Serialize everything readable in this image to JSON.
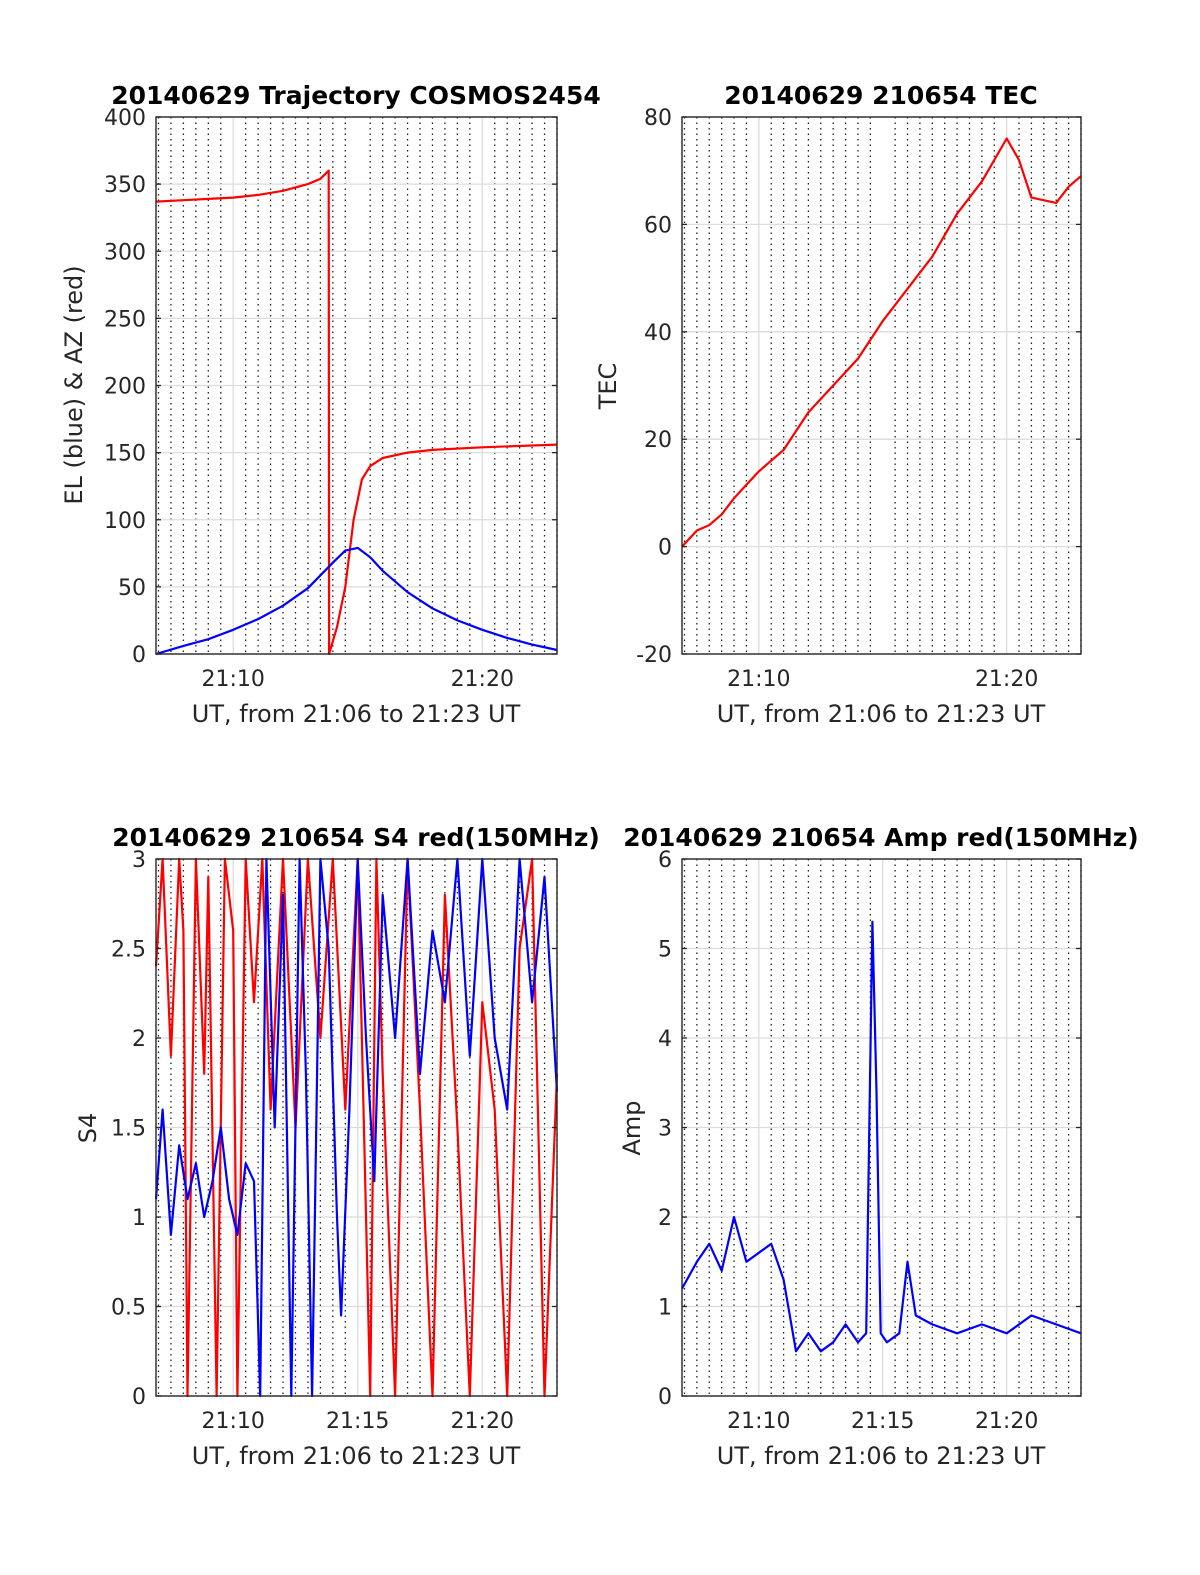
{
  "chart_data": [
    {
      "type": "line",
      "title": "20140629 Trajectory COSMOS2454",
      "xlabel": "UT, from 21:06 to 21:23 UT",
      "ylabel": "EL (blue) & AZ (red)",
      "xlim": [
        "21:06:54",
        "21:23:00"
      ],
      "ylim": [
        0,
        400
      ],
      "yticks": [
        0,
        50,
        100,
        150,
        200,
        250,
        300,
        350,
        400
      ],
      "xticks": [
        "21:10",
        "21:20"
      ],
      "grid": true,
      "series": [
        {
          "color": "#ff0000",
          "x": [
            "21:06:54",
            "21:08:00",
            "21:09:00",
            "21:10:00",
            "21:11:00",
            "21:12:00",
            "21:13:00",
            "21:13:30",
            "21:13:50",
            "21:13:51",
            "21:14:10",
            "21:14:30",
            "21:14:50",
            "21:15:10",
            "21:15:30",
            "21:16:00",
            "21:17:00",
            "21:18:00",
            "21:20:00",
            "21:23:00"
          ],
          "values": [
            337,
            338,
            339,
            340,
            342,
            345,
            350,
            354,
            360,
            0,
            20,
            50,
            100,
            130,
            140,
            146,
            150,
            152,
            154,
            156
          ]
        },
        {
          "color": "#0000ff",
          "x": [
            "21:06:54",
            "21:08:00",
            "21:09:00",
            "21:10:00",
            "21:11:00",
            "21:12:00",
            "21:13:00",
            "21:14:00",
            "21:14:30",
            "21:15:00",
            "21:15:30",
            "21:16:00",
            "21:17:00",
            "21:18:00",
            "21:19:00",
            "21:20:00",
            "21:21:00",
            "21:22:00",
            "21:23:00"
          ],
          "values": [
            0,
            6,
            11,
            18,
            26,
            36,
            49,
            68,
            77,
            79,
            72,
            62,
            46,
            34,
            25,
            18,
            12,
            7,
            3
          ]
        }
      ]
    },
    {
      "type": "line",
      "title": "20140629 210654 TEC",
      "xlabel": "UT, from 21:06 to 21:23 UT",
      "ylabel": "TEC",
      "xlim": [
        "21:06:54",
        "21:23:00"
      ],
      "ylim": [
        -20,
        80
      ],
      "yticks": [
        -20,
        0,
        20,
        40,
        60,
        80
      ],
      "xticks": [
        "21:10",
        "21:20"
      ],
      "grid": true,
      "series": [
        {
          "color": "#ff0000",
          "x": [
            "21:06:54",
            "21:07:30",
            "21:08:00",
            "21:08:30",
            "21:09:00",
            "21:10:00",
            "21:11:00",
            "21:12:00",
            "21:13:00",
            "21:14:00",
            "21:15:00",
            "21:16:00",
            "21:17:00",
            "21:18:00",
            "21:19:00",
            "21:20:00",
            "21:20:30",
            "21:21:00",
            "21:22:00",
            "21:22:30",
            "21:23:00"
          ],
          "values": [
            0,
            3,
            4,
            6,
            9,
            14,
            18,
            25,
            30,
            35,
            42,
            48,
            54,
            62,
            68,
            76,
            72,
            65,
            64,
            67,
            69
          ]
        }
      ]
    },
    {
      "type": "line",
      "title": "20140629 210654 S4 red(150MHz)",
      "xlabel": "UT, from 21:06 to 21:23 UT",
      "ylabel": "S4",
      "xlim": [
        "21:06:54",
        "21:23:00"
      ],
      "ylim": [
        0,
        3
      ],
      "yticks": [
        0,
        0.5,
        1,
        1.5,
        2,
        2.5,
        3
      ],
      "xticks": [
        "21:10",
        "21:15",
        "21:20"
      ],
      "grid": true,
      "series": [
        {
          "color": "#ff0000",
          "x": [
            "21:06:54",
            "21:07:10",
            "21:07:30",
            "21:07:50",
            "21:08:00",
            "21:08:10",
            "21:08:30",
            "21:08:50",
            "21:09:00",
            "21:09:20",
            "21:09:40",
            "21:10:00",
            "21:10:10",
            "21:10:30",
            "21:10:50",
            "21:11:10",
            "21:11:30",
            "21:12:00",
            "21:12:30",
            "21:13:00",
            "21:13:30",
            "21:14:00",
            "21:14:30",
            "21:15:00",
            "21:15:30",
            "21:15:45",
            "21:16:00",
            "21:16:30",
            "21:17:00",
            "21:17:30",
            "21:18:00",
            "21:18:30",
            "21:19:00",
            "21:19:30",
            "21:20:00",
            "21:20:30",
            "21:21:00",
            "21:21:30",
            "21:22:00",
            "21:22:30",
            "21:23:00"
          ],
          "values": [
            2.4,
            3,
            1.9,
            3,
            2.6,
            0,
            3,
            1.8,
            2.9,
            0,
            3,
            2.6,
            0,
            3,
            2.2,
            3,
            1.6,
            3,
            1.5,
            3,
            2.0,
            3,
            1.6,
            3,
            0,
            3,
            1.8,
            0,
            3,
            1.6,
            0,
            2.8,
            1.5,
            0,
            2.2,
            1.6,
            0,
            2.5,
            3,
            0,
            1.8
          ]
        },
        {
          "color": "#0000ff",
          "x": [
            "21:06:54",
            "21:07:10",
            "21:07:30",
            "21:07:50",
            "21:08:10",
            "21:08:30",
            "21:08:50",
            "21:09:10",
            "21:09:30",
            "21:09:50",
            "21:10:10",
            "21:10:30",
            "21:10:50",
            "21:11:05",
            "21:11:20",
            "21:11:40",
            "21:12:00",
            "21:12:20",
            "21:12:40",
            "21:12:55",
            "21:13:10",
            "21:13:30",
            "21:13:50",
            "21:14:10",
            "21:14:20",
            "21:14:40",
            "21:15:00",
            "21:15:20",
            "21:15:40",
            "21:16:00",
            "21:16:30",
            "21:17:00",
            "21:17:30",
            "21:18:00",
            "21:18:30",
            "21:19:00",
            "21:19:30",
            "21:20:00",
            "21:20:30",
            "21:21:00",
            "21:21:30",
            "21:22:00",
            "21:22:30",
            "21:23:00"
          ],
          "values": [
            1.1,
            1.6,
            0.9,
            1.4,
            1.1,
            1.3,
            1.0,
            1.2,
            1.5,
            1.1,
            0.9,
            1.3,
            1.2,
            0,
            3,
            1.5,
            2.8,
            0,
            3,
            1.8,
            0,
            3,
            2.5,
            1.0,
            0.45,
            1.6,
            3,
            2.0,
            1.2,
            2.8,
            2.0,
            3,
            1.8,
            2.6,
            2.2,
            3,
            1.9,
            3,
            2.0,
            1.6,
            3,
            2.2,
            2.9,
            1.7
          ]
        }
      ]
    },
    {
      "type": "line",
      "title": "20140629 210654 Amp red(150MHz)",
      "xlabel": "UT, from 21:06 to 21:23 UT",
      "ylabel": "Amp",
      "xlim": [
        "21:06:54",
        "21:23:00"
      ],
      "ylim": [
        0,
        6
      ],
      "yticks": [
        0,
        1,
        2,
        3,
        4,
        5,
        6
      ],
      "xticks": [
        "21:10",
        "21:15",
        "21:20"
      ],
      "grid": true,
      "series": [
        {
          "color": "#0000ff",
          "x": [
            "21:06:54",
            "21:07:30",
            "21:08:00",
            "21:08:30",
            "21:09:00",
            "21:09:30",
            "21:10:00",
            "21:10:30",
            "21:11:00",
            "21:11:30",
            "21:12:00",
            "21:12:30",
            "21:13:00",
            "21:13:30",
            "21:14:00",
            "21:14:20",
            "21:14:35",
            "21:14:45",
            "21:14:55",
            "21:15:10",
            "21:15:40",
            "21:16:00",
            "21:16:20",
            "21:17:00",
            "21:18:00",
            "21:19:00",
            "21:20:00",
            "21:21:00",
            "21:22:00",
            "21:23:00"
          ],
          "values": [
            1.2,
            1.5,
            1.7,
            1.4,
            2.0,
            1.5,
            1.6,
            1.7,
            1.3,
            0.5,
            0.7,
            0.5,
            0.6,
            0.8,
            0.6,
            0.7,
            5.3,
            3.4,
            0.7,
            0.6,
            0.7,
            1.5,
            0.9,
            0.8,
            0.7,
            0.8,
            0.7,
            0.9,
            0.8,
            0.7
          ]
        }
      ]
    }
  ]
}
